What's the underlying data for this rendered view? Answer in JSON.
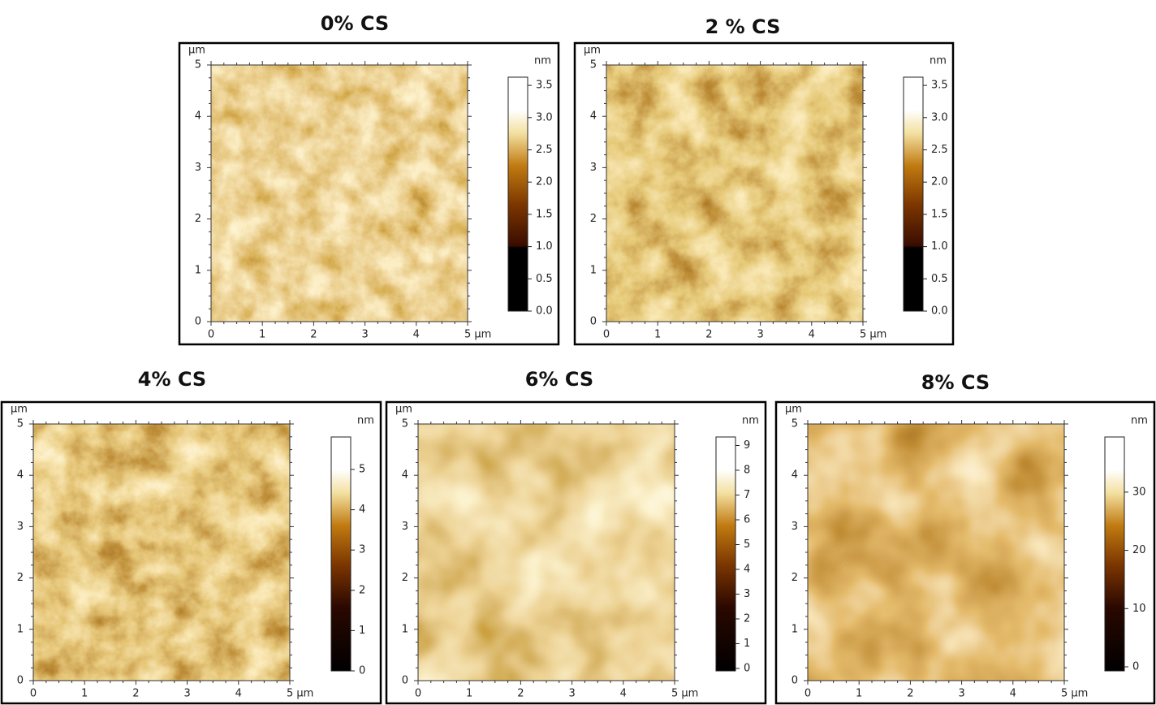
{
  "panels": [
    {
      "title": "0% CS",
      "y_unit": "µm",
      "y_ticks": [
        "0",
        "1",
        "2",
        "3",
        "4",
        "5"
      ],
      "x_ticks": [
        "0",
        "1",
        "2",
        "3",
        "4",
        "5 µm"
      ],
      "colorbar_unit": "nm",
      "colorbar_ticks": [
        "0.0",
        "0.5",
        "1.0",
        "1.5",
        "2.0",
        "2.5",
        "3.0",
        "3.5"
      ]
    },
    {
      "title": "2 % CS",
      "y_unit": "µm",
      "y_ticks": [
        "0",
        "1",
        "2",
        "3",
        "4",
        "5"
      ],
      "x_ticks": [
        "0",
        "1",
        "2",
        "3",
        "4",
        "5 µm"
      ],
      "colorbar_unit": "nm",
      "colorbar_ticks": [
        "0.0",
        "0.5",
        "1.0",
        "1.5",
        "2.0",
        "2.5",
        "3.0",
        "3.5"
      ]
    },
    {
      "title": "4% CS",
      "y_unit": "µm",
      "y_ticks": [
        "0",
        "1",
        "2",
        "3",
        "4",
        "5"
      ],
      "x_ticks": [
        "0",
        "1",
        "2",
        "3",
        "4",
        "5 µm"
      ],
      "colorbar_unit": "nm",
      "colorbar_ticks": [
        "0",
        "1",
        "2",
        "3",
        "4",
        "5"
      ]
    },
    {
      "title": "6% CS",
      "y_unit": "µm",
      "y_ticks": [
        "0",
        "1",
        "2",
        "3",
        "4",
        "5"
      ],
      "x_ticks": [
        "0",
        "1",
        "2",
        "3",
        "4",
        "5 µm"
      ],
      "colorbar_unit": "nm",
      "colorbar_ticks": [
        "0",
        "1",
        "2",
        "3",
        "4",
        "5",
        "6",
        "7",
        "8",
        "9"
      ]
    },
    {
      "title": "8% CS",
      "y_unit": "µm",
      "y_ticks": [
        "0",
        "1",
        "2",
        "3",
        "4",
        "5"
      ],
      "x_ticks": [
        "0",
        "1",
        "2",
        "3",
        "4",
        "5 µm"
      ],
      "colorbar_unit": "nm",
      "colorbar_ticks": [
        "0",
        "10",
        "20",
        "30"
      ]
    }
  ]
}
